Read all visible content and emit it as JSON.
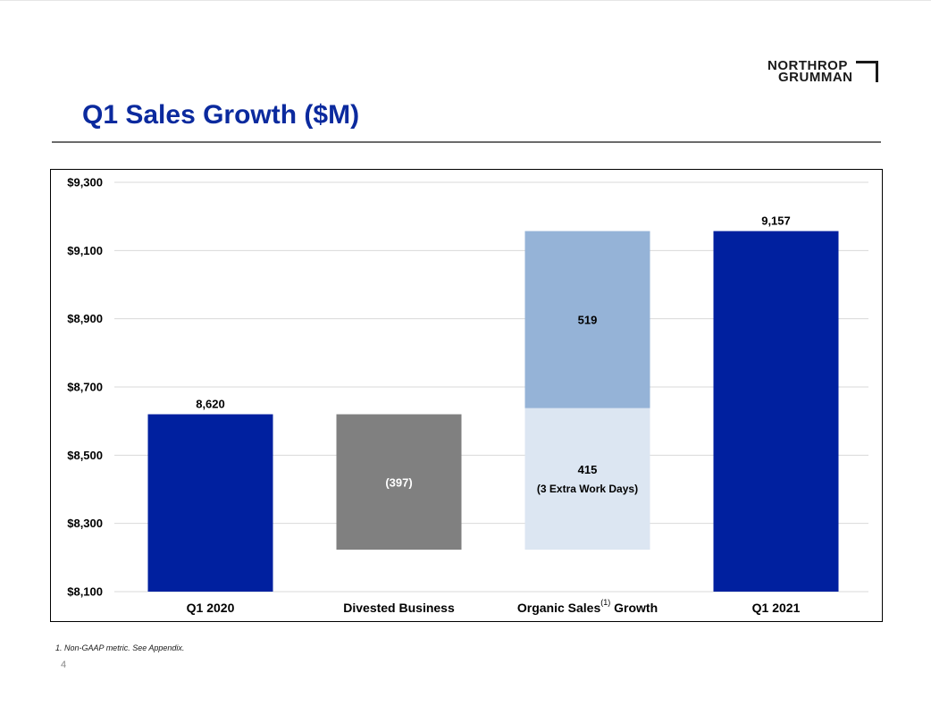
{
  "logo": {
    "line1": "NORTHROP",
    "line2": "GRUMMAN"
  },
  "title": "Q1 Sales Growth ($M)",
  "footnote": "1.  Non-GAAP metric. See Appendix.",
  "page_number": "4",
  "colors": {
    "title": "#0b2a9e",
    "bar_dark_blue": "#00209f",
    "bar_gray": "#808080",
    "bar_mid_blue": "#95b3d7",
    "bar_light_blue": "#dce6f2",
    "grid": "#d9d9d9"
  },
  "chart_data": {
    "type": "bar",
    "subtype": "waterfall",
    "categories": [
      "Q1 2020",
      "Divested Business",
      "Organic Sales",
      "Q1 2021"
    ],
    "category_superscripts": [
      "",
      "",
      "(1)",
      ""
    ],
    "category_suffixes": [
      "",
      "",
      " Growth",
      ""
    ],
    "ylim": [
      8100,
      9300
    ],
    "yticks": [
      8100,
      8300,
      8500,
      8700,
      8900,
      9100,
      9300
    ],
    "ytick_labels": [
      "$8,100",
      "$8,300",
      "$8,500",
      "$8,700",
      "$8,900",
      "$9,100",
      "$9,300"
    ],
    "grid": true,
    "legend": "none",
    "segments": [
      {
        "category": 0,
        "base": 8100,
        "top": 8620,
        "value": 8620,
        "label": "8,620",
        "label_position": "above",
        "color": "#00209f"
      },
      {
        "category": 1,
        "base": 8223,
        "top": 8620,
        "value": -397,
        "label": "(397)",
        "label_position": "inside",
        "color": "#808080"
      },
      {
        "category": 2,
        "base": 8223,
        "top": 8638,
        "value": 415,
        "label": "415",
        "sublabel": "(3 Extra Work Days)",
        "label_position": "inside",
        "color": "#dce6f2"
      },
      {
        "category": 2,
        "base": 8638,
        "top": 9157,
        "value": 519,
        "label": "519",
        "label_position": "inside",
        "color": "#95b3d7"
      },
      {
        "category": 3,
        "base": 8100,
        "top": 9157,
        "value": 9157,
        "label": "9,157",
        "label_position": "above",
        "color": "#00209f"
      }
    ]
  }
}
